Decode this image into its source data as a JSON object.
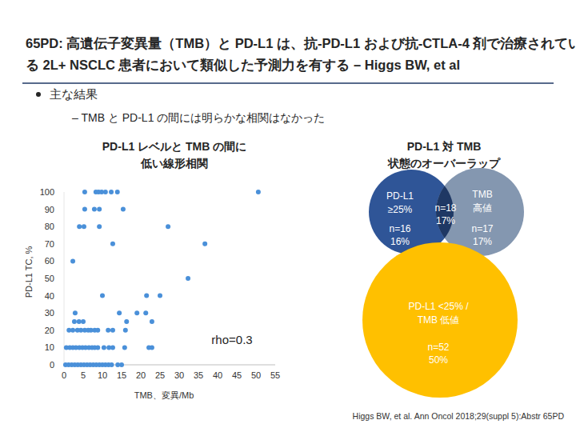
{
  "header": {
    "title": [
      "65PD: 高遺伝子変異量（TMB）と PD-L1 は、抗-PD-L1 および抗-CTLA-4 剤で治療されてい",
      "る 2L+ NSCLC 患者において類似した予測力を有する – Higgs BW, et al"
    ]
  },
  "bullet": "主な結果",
  "sub_bullet": "– TMB と PD-L1 の間には明らかな相関はなかった",
  "footnote": "Higgs BW, et al. Ann Oncol 2018;29(suppl 5):Abstr 65PD",
  "chart_data": [
    {
      "type": "scatter",
      "title": [
        "PD-L1 レベルと TMB の間に",
        "低い線形相関"
      ],
      "x_label": "TMB、変異/Mb",
      "y_label": "PD-L1 TC, %",
      "annotation": "rho=0.3",
      "color": "#4a90d9",
      "marker": "circle",
      "grid": false,
      "xlim": [
        0,
        55
      ],
      "ylim": [
        0,
        100
      ],
      "xticks": [
        0,
        5,
        10,
        15,
        20,
        25,
        30,
        35,
        40,
        45,
        50,
        55
      ],
      "yticks": [
        0,
        10,
        20,
        30,
        40,
        50,
        60,
        70,
        80,
        90,
        100
      ],
      "x": [
        5.4,
        8.3,
        9.0,
        9.8,
        10.8,
        12.3,
        13.9,
        50.6,
        5.4,
        7.9,
        9.2,
        15.4,
        4.0,
        5.2,
        9.2,
        27.1,
        12.7,
        36.7,
        2.3,
        32.3,
        10,
        21.5,
        25,
        2.9,
        14.4,
        19,
        21.3,
        2.7,
        3.9,
        5,
        16.3,
        22.9,
        1.3,
        2.3,
        3.5,
        4.4,
        5.4,
        6.3,
        7,
        8,
        8.8,
        11.5,
        12.7,
        16,
        0.6,
        1.5,
        2.3,
        3.1,
        4,
        4.8,
        5.6,
        6.5,
        7.3,
        8,
        8.8,
        10.4,
        11.7,
        12.7,
        15.8,
        22.1,
        22.9,
        0.4,
        1.2,
        2,
        2.8,
        3.6,
        4.4,
        5.2,
        6,
        6.8,
        7.6,
        8.4,
        9.2,
        10,
        10.8,
        11.6,
        12.4,
        14,
        15
      ],
      "values": [
        100,
        100,
        100,
        100,
        100,
        100,
        100,
        100,
        90,
        90,
        90,
        90,
        80,
        80,
        80,
        80,
        70,
        70,
        60,
        50,
        40,
        40,
        40,
        30,
        30,
        30,
        30,
        25,
        25,
        25,
        25,
        25,
        20,
        20,
        20,
        20,
        20,
        20,
        20,
        20,
        20,
        20,
        20,
        20,
        10,
        10,
        10,
        10,
        10,
        10,
        10,
        10,
        10,
        10,
        10,
        10,
        10,
        10,
        10,
        10,
        10,
        0,
        0,
        0,
        0,
        0,
        0,
        0,
        0,
        0,
        0,
        0,
        0,
        0,
        0,
        0,
        0,
        0,
        0
      ]
    },
    {
      "type": "venn",
      "title": [
        "PD-L1 対 TMB",
        "状態のオーバーラップ"
      ],
      "regions": [
        {
          "name": [
            "PD-L1",
            "≥25%"
          ],
          "n": 16,
          "n_label": "n=16",
          "pct": 16,
          "pct_label": "16%",
          "color": "#2f5597"
        },
        {
          "name": [],
          "n": 18,
          "n_label": "n=18",
          "pct": 17,
          "pct_label": "17%",
          "color": "#1f3864"
        },
        {
          "name": [
            "TMB",
            "高値"
          ],
          "n": 17,
          "n_label": "n=17",
          "pct": 17,
          "pct_label": "17%",
          "color": "#8497b0"
        },
        {
          "name": [
            "PD-L1 <25% /",
            "TMB 低値"
          ],
          "n": 52,
          "n_label": "n=52",
          "pct": 50,
          "pct_label": "50%",
          "color": "#ffc000"
        }
      ]
    }
  ]
}
